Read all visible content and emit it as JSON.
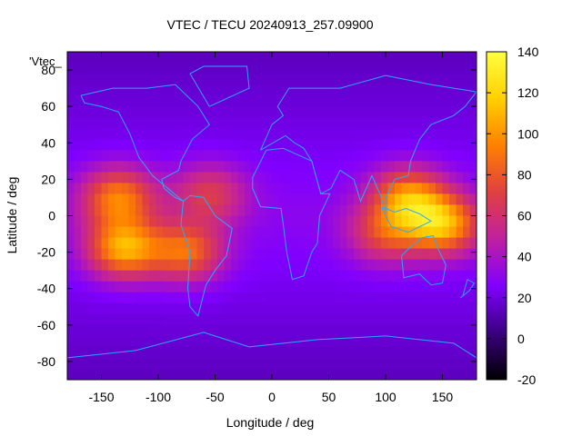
{
  "chart_data": {
    "type": "heatmap",
    "title": "VTEC / TECU 20240913_257.09900",
    "xlabel": "Longitude / deg",
    "ylabel": "Latitude / deg",
    "key_label": "'Vtec_",
    "xlim": [
      -180,
      180
    ],
    "ylim": [
      -90,
      90
    ],
    "x_ticks": [
      "-150",
      "-100",
      "-50",
      "0",
      "50",
      "100",
      "150"
    ],
    "x_tick_values": [
      -150,
      -100,
      -50,
      0,
      50,
      100,
      150
    ],
    "y_ticks": [
      "-80",
      "-60",
      "-40",
      "-20",
      "0",
      "20",
      "40",
      "60",
      "80"
    ],
    "y_tick_values": [
      -80,
      -60,
      -40,
      -20,
      0,
      20,
      40,
      60,
      80
    ],
    "colorbar": {
      "range": [
        -20,
        140
      ],
      "ticks": [
        "140",
        "120",
        "100",
        "80",
        "60",
        "40",
        "20",
        "0",
        "-20"
      ],
      "tick_values": [
        140,
        120,
        100,
        80,
        60,
        40,
        20,
        0,
        -20
      ],
      "palette": [
        "#000000",
        "#3a0080",
        "#8000ff",
        "#c020a0",
        "#e04040",
        "#ff8000",
        "#ffd000",
        "#ffff40"
      ]
    },
    "coastline_color": "#2aa8ff",
    "hotspots": [
      {
        "lon": -130,
        "lat": -18,
        "value": 110
      },
      {
        "lon": -135,
        "lat": 10,
        "value": 95
      },
      {
        "lon": -75,
        "lat": -20,
        "value": 90
      },
      {
        "lon": -55,
        "lat": 12,
        "value": 70
      },
      {
        "lon": 120,
        "lat": 10,
        "value": 100
      },
      {
        "lon": 150,
        "lat": -5,
        "value": 110
      },
      {
        "lon": 100,
        "lat": -10,
        "value": 75
      }
    ],
    "background_value": 30
  }
}
